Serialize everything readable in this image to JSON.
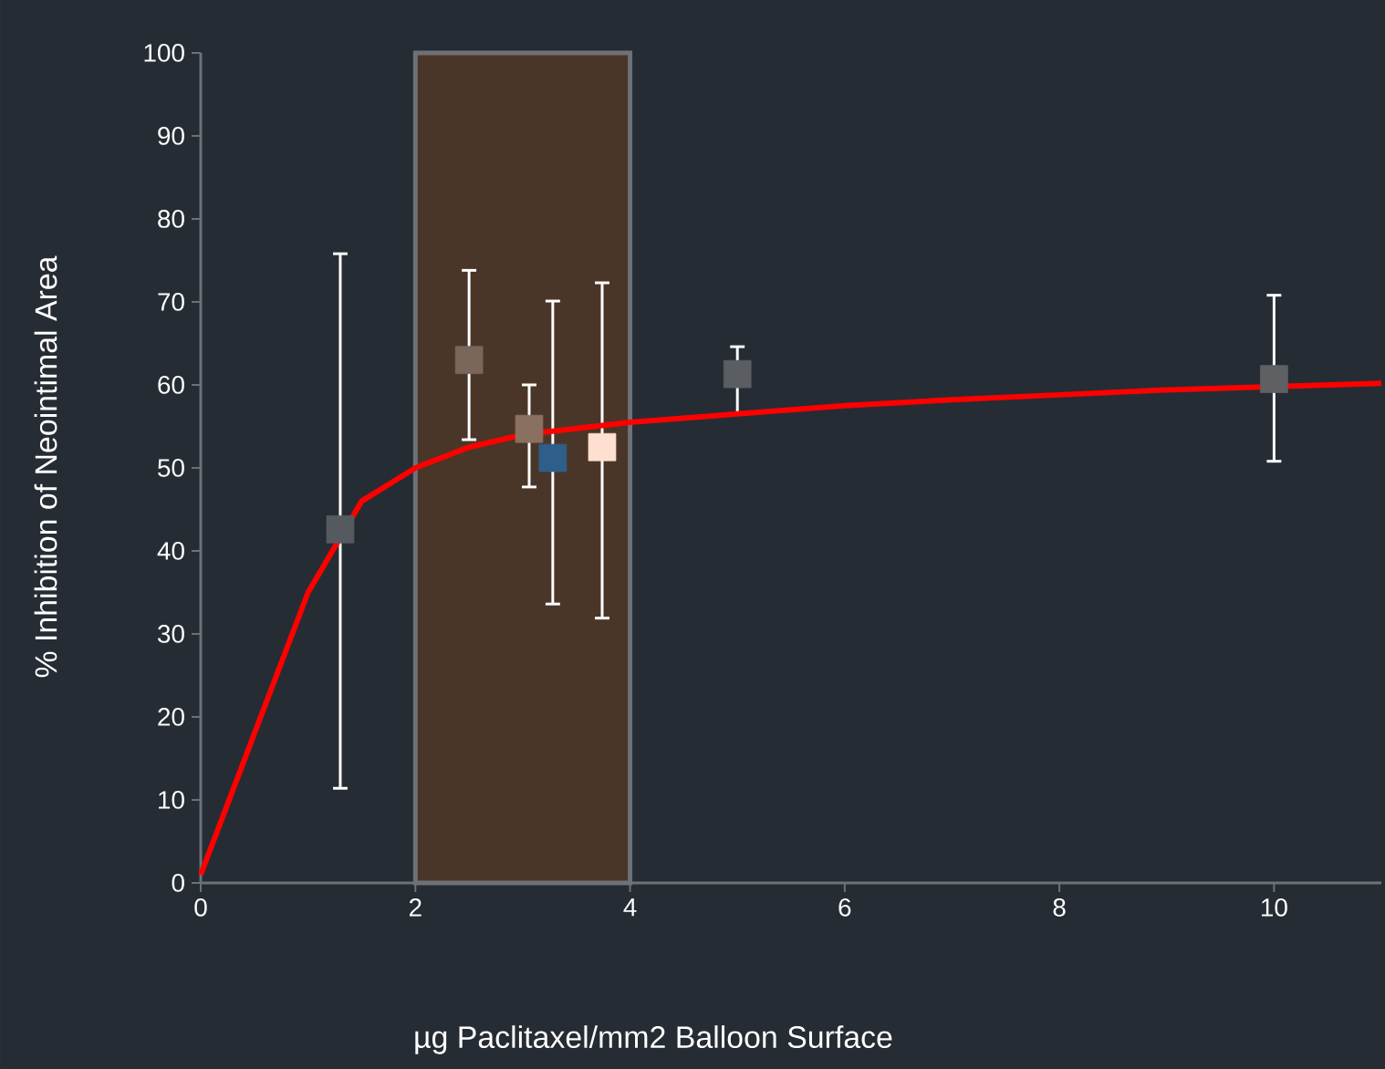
{
  "chart_data": {
    "type": "scatter",
    "xlabel": "µg Paclitaxel/mm2 Balloon Surface",
    "ylabel": "% Inhibition of Neointimal Area",
    "xlim": [
      0,
      11
    ],
    "ylim": [
      0,
      100
    ],
    "xticks": [
      0,
      2,
      4,
      6,
      8,
      10
    ],
    "yticks": [
      0,
      10,
      20,
      30,
      40,
      50,
      60,
      70,
      80,
      90,
      100
    ],
    "grid": false,
    "bands": [
      {
        "axis": "x",
        "from": 2,
        "to": 4,
        "color": "#4a3628"
      }
    ],
    "series": [
      {
        "marker": "square",
        "x": [
          1.3,
          2.5,
          3.06,
          3.28,
          3.74,
          5.0,
          10.0
        ],
        "values": [
          42.6,
          63,
          54.7,
          51.2,
          52.5,
          61.3,
          60.7
        ],
        "colors": [
          "#555a60",
          "#7a665a",
          "#8a7060",
          "#2e5f8a",
          "#ffe0d0",
          "#5a5d62",
          "#5f6063"
        ],
        "errors": [
          [
            11.4,
            75.8
          ],
          [
            53.4,
            73.8
          ],
          [
            47.7,
            60
          ],
          [
            33.6,
            70.1
          ],
          [
            31.9,
            72.3
          ],
          [
            56.5,
            64.6
          ],
          [
            50.8,
            70.8
          ]
        ]
      },
      {
        "type": "line",
        "marker": "none",
        "color": "#ff0000",
        "x": [
          0,
          0.5,
          1,
          1.5,
          2,
          2.5,
          3,
          4,
          5,
          6,
          7,
          8,
          9,
          11
        ],
        "values": [
          1,
          18,
          35,
          46,
          50,
          52.5,
          54,
          55.5,
          56.5,
          57.5,
          58.2,
          58.8,
          59.4,
          60.2
        ]
      }
    ]
  }
}
